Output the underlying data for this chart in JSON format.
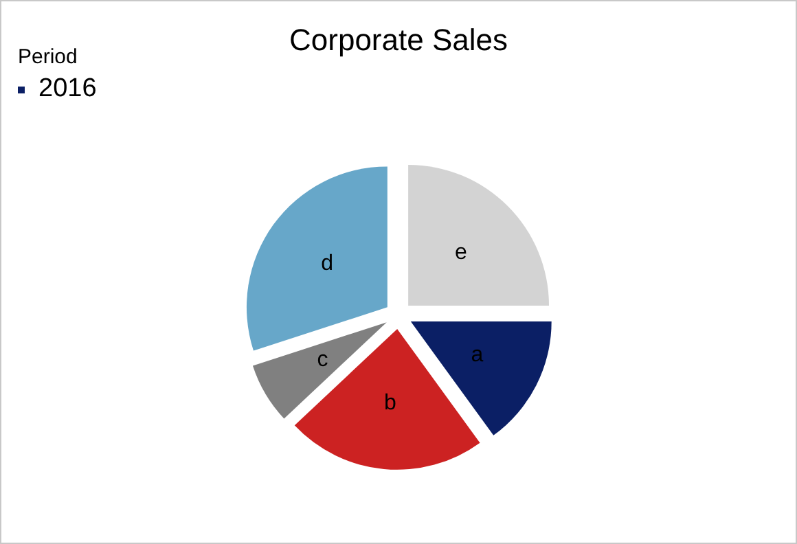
{
  "chart_data": {
    "type": "pie",
    "title": "Corporate Sales",
    "legend_title": "Period",
    "legend": "top left",
    "categories": [
      "a",
      "b",
      "c",
      "d",
      "e"
    ],
    "series": [
      {
        "name": "2016",
        "color": "#0b1f65",
        "values": [
          15,
          23,
          7,
          30,
          25
        ],
        "colors": [
          "#0b1f65",
          "#cc2222",
          "#808080",
          "#67a7c9",
          "#d3d3d3"
        ]
      }
    ]
  }
}
